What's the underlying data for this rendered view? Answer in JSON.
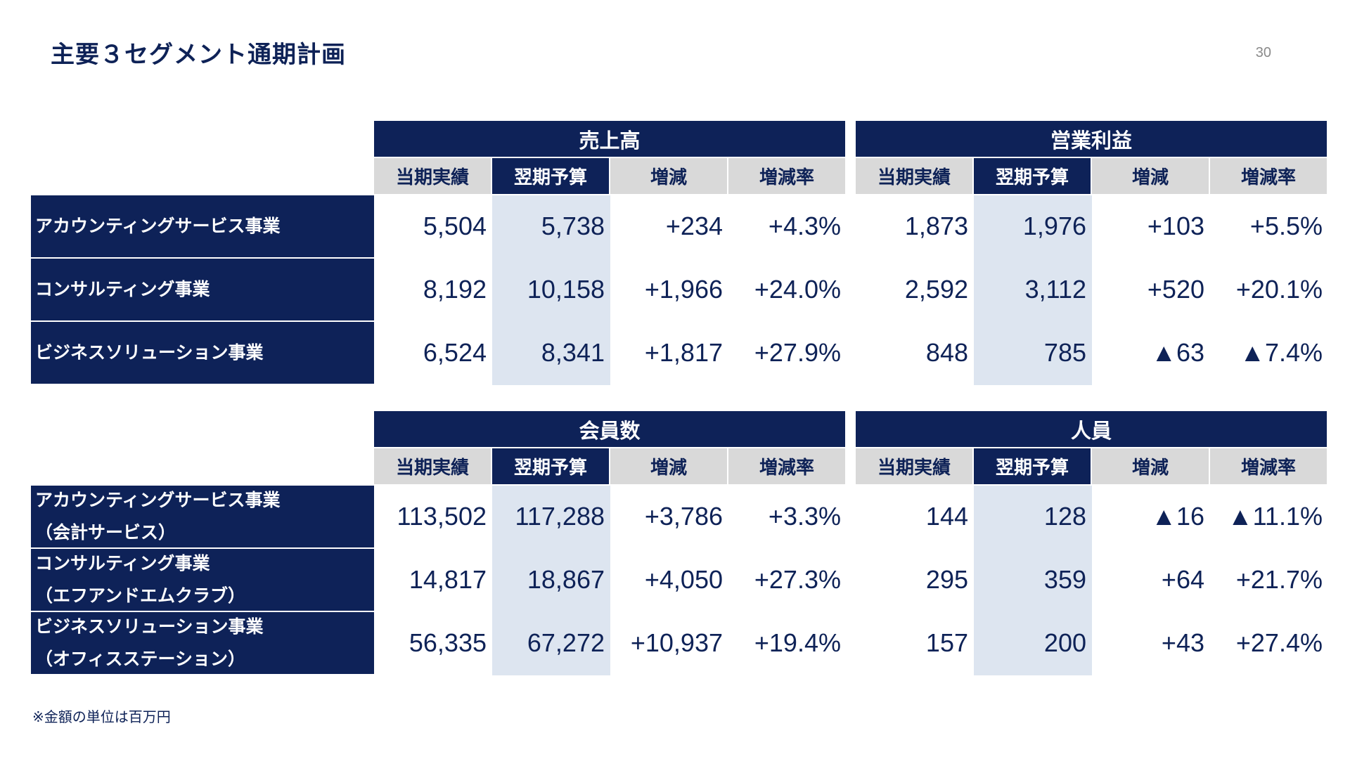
{
  "title": "主要３セグメント通期計画",
  "page_number": "30",
  "footnote": "※金額の単位は百万円",
  "columns": [
    "当期実績",
    "翌期予算",
    "増減",
    "増減率"
  ],
  "top": {
    "groups": [
      "売上高",
      "営業利益"
    ],
    "rows": [
      {
        "label": [
          "アカウンティングサービス事業"
        ],
        "values": [
          "5,504",
          "5,738",
          "+234",
          "+4.3%",
          "1,873",
          "1,976",
          "+103",
          "+5.5%"
        ]
      },
      {
        "label": [
          "コンサルティング事業"
        ],
        "values": [
          "8,192",
          "10,158",
          "+1,966",
          "+24.0%",
          "2,592",
          "3,112",
          "+520",
          "+20.1%"
        ]
      },
      {
        "label": [
          "ビジネスソリューション事業"
        ],
        "values": [
          "6,524",
          "8,341",
          "+1,817",
          "+27.9%",
          "848",
          "785",
          "▲63",
          "▲7.4%"
        ]
      }
    ]
  },
  "bottom": {
    "groups": [
      "会員数",
      "人員"
    ],
    "rows": [
      {
        "label": [
          "アカウンティングサービス事業",
          "（会計サービス）"
        ],
        "values": [
          "113,502",
          "117,288",
          "+3,786",
          "+3.3%",
          "144",
          "128",
          "▲16",
          "▲11.1%"
        ]
      },
      {
        "label": [
          "コンサルティング事業",
          "（エフアンドエムクラブ）"
        ],
        "values": [
          "14,817",
          "18,867",
          "+4,050",
          "+27.3%",
          "295",
          "359",
          "+64",
          "+21.7%"
        ]
      },
      {
        "label": [
          "ビジネスソリューション事業",
          "（オフィスステーション）"
        ],
        "values": [
          "56,335",
          "67,272",
          "+10,937",
          "+19.4%",
          "157",
          "200",
          "+43",
          "+27.4%"
        ]
      }
    ]
  },
  "colors": {
    "navy": "#0e2258",
    "header_gray": "#d9d9d9",
    "highlight": "#dde5f0"
  }
}
